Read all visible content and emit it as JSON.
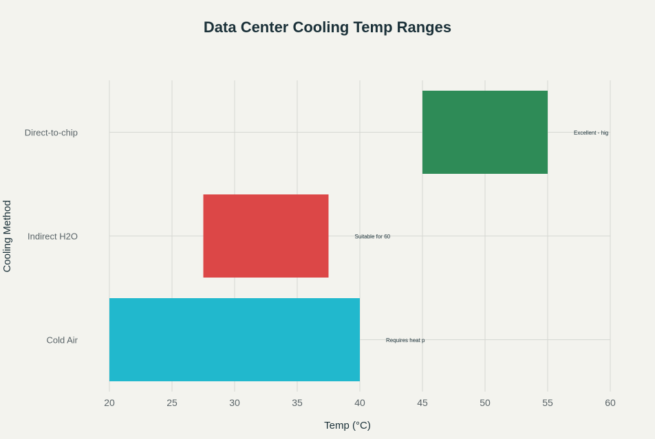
{
  "chart_data": {
    "type": "bar",
    "orientation": "horizontal",
    "title": "Data Center Cooling Temp Ranges",
    "xlabel": "Temp (°C)",
    "ylabel": "Cooling Method",
    "xlim": [
      20,
      60
    ],
    "x_ticks": [
      20,
      25,
      30,
      35,
      40,
      45,
      50,
      55,
      60
    ],
    "grid": true,
    "categories": [
      "Cold Air",
      "Indirect H2O",
      "Direct-to-chip"
    ],
    "bars": [
      {
        "category": "Cold Air",
        "start": 20,
        "end": 40,
        "color": "#21b8cd",
        "annotation": "Requires heat p"
      },
      {
        "category": "Indirect H2O",
        "start": 27.5,
        "end": 37.5,
        "color": "#dc4747",
        "annotation": "Suitable for 60"
      },
      {
        "category": "Direct-to-chip",
        "start": 45,
        "end": 55,
        "color": "#2e8b57",
        "annotation": "Excellent - hig"
      }
    ]
  }
}
